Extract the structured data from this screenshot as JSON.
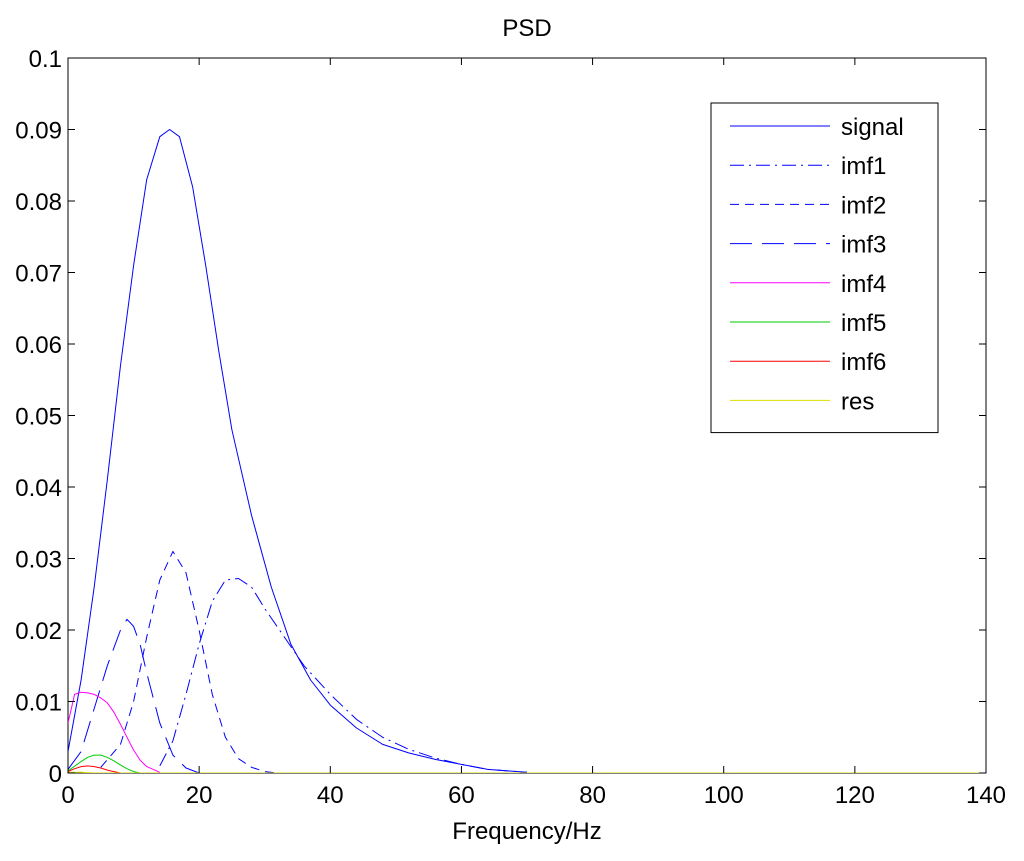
{
  "chart_data": {
    "type": "line",
    "title": "PSD",
    "xlabel": "Frequency/Hz",
    "ylabel": "",
    "xlim": [
      0,
      140
    ],
    "ylim": [
      0,
      0.1
    ],
    "xticks": [
      0,
      20,
      40,
      60,
      80,
      100,
      120,
      140
    ],
    "yticks": [
      0,
      0.01,
      0.02,
      0.03,
      0.04,
      0.05,
      0.06,
      0.07,
      0.08,
      0.09,
      0.1
    ],
    "xtick_labels": [
      "0",
      "20",
      "40",
      "60",
      "80",
      "100",
      "120",
      "140"
    ],
    "ytick_labels": [
      "0",
      "0.01",
      "0.02",
      "0.03",
      "0.04",
      "0.05",
      "0.06",
      "0.07",
      "0.08",
      "0.09",
      "0.1"
    ],
    "grid": false,
    "legend_position": "top-right",
    "series": [
      {
        "name": "signal",
        "color": "#0000ff",
        "dash": "solid",
        "x": [
          0,
          2,
          4,
          6,
          8,
          10,
          12,
          14,
          15.5,
          17,
          19,
          21,
          23,
          25,
          28,
          31,
          34,
          37,
          40,
          44,
          48,
          52,
          56,
          60,
          64,
          70
        ],
        "y": [
          0.003,
          0.013,
          0.026,
          0.041,
          0.057,
          0.071,
          0.083,
          0.089,
          0.09,
          0.089,
          0.082,
          0.071,
          0.059,
          0.048,
          0.036,
          0.026,
          0.018,
          0.013,
          0.0095,
          0.0063,
          0.004,
          0.0028,
          0.0019,
          0.0012,
          0.0005,
          0.0001
        ]
      },
      {
        "name": "imf1",
        "color": "#0000ff",
        "dash": "dashdot",
        "x": [
          14,
          16,
          18,
          20,
          22,
          24,
          26,
          28,
          30,
          33,
          36,
          40,
          44,
          48,
          52,
          56,
          60,
          64,
          70
        ],
        "y": [
          0.001,
          0.0045,
          0.011,
          0.018,
          0.024,
          0.027,
          0.0272,
          0.026,
          0.023,
          0.019,
          0.015,
          0.011,
          0.0075,
          0.005,
          0.0033,
          0.0021,
          0.0012,
          0.0005,
          0.0001
        ]
      },
      {
        "name": "imf2",
        "color": "#0000ff",
        "dash": "dashed",
        "x": [
          5,
          8,
          10,
          12,
          14,
          16,
          18,
          20,
          22,
          24,
          26,
          28,
          30,
          32
        ],
        "y": [
          0.0008,
          0.004,
          0.01,
          0.019,
          0.027,
          0.031,
          0.028,
          0.02,
          0.011,
          0.005,
          0.002,
          0.0008,
          0.0002,
          0.0
        ]
      },
      {
        "name": "imf3",
        "color": "#0000ff",
        "dash": "longdash",
        "x": [
          0,
          2,
          4,
          6,
          8,
          9,
          10,
          11,
          12,
          14,
          16,
          18,
          20
        ],
        "y": [
          0.0005,
          0.003,
          0.009,
          0.015,
          0.02,
          0.0215,
          0.0205,
          0.018,
          0.014,
          0.007,
          0.0025,
          0.0007,
          0.0
        ]
      },
      {
        "name": "imf4",
        "color": "#ff00ff",
        "dash": "solid",
        "x": [
          0,
          1,
          2,
          3,
          4,
          5,
          6,
          7,
          8,
          9,
          10,
          11,
          12,
          14
        ],
        "y": [
          0.007,
          0.011,
          0.0113,
          0.0112,
          0.011,
          0.0105,
          0.0098,
          0.0085,
          0.0068,
          0.005,
          0.0032,
          0.0018,
          0.0009,
          0.0001
        ]
      },
      {
        "name": "imf5",
        "color": "#00cc00",
        "dash": "solid",
        "x": [
          0,
          2,
          3,
          4,
          5,
          6,
          7,
          8,
          9,
          10,
          11
        ],
        "y": [
          0.0003,
          0.0016,
          0.0022,
          0.0025,
          0.0025,
          0.0022,
          0.0017,
          0.0011,
          0.0006,
          0.0002,
          0.0
        ]
      },
      {
        "name": "imf6",
        "color": "#ff0000",
        "dash": "solid",
        "x": [
          0,
          1,
          2,
          3,
          4,
          5,
          6,
          7,
          8
        ],
        "y": [
          0.0002,
          0.0006,
          0.0009,
          0.001,
          0.0009,
          0.0007,
          0.0004,
          0.0002,
          0.0
        ]
      },
      {
        "name": "res",
        "color": "#dddd00",
        "dash": "solid",
        "x": [
          0,
          2,
          4,
          140
        ],
        "y": [
          0.0001,
          0.0001,
          0.0,
          0.0
        ]
      }
    ]
  }
}
